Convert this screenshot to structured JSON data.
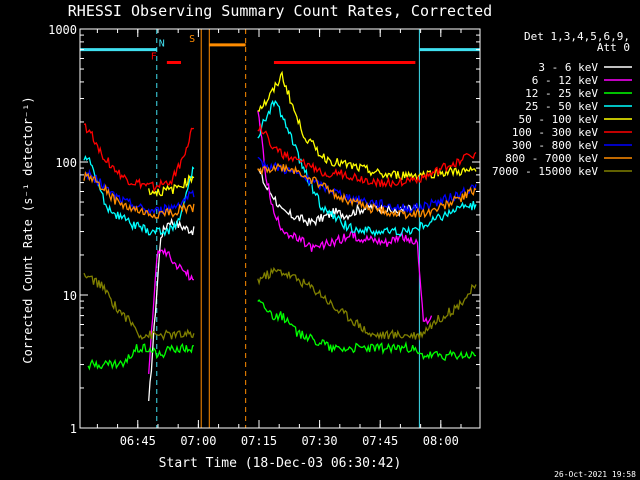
{
  "chart_data": {
    "type": "line",
    "title": "RHESSI Observing Summary Count Rates, Corrected",
    "xlabel": "Start Time (18-Dec-03 06:30:42)",
    "ylabel": "Corrected Count Rate (s⁻¹ detector⁻¹)",
    "yscale": "log",
    "ylim": [
      1,
      1000
    ],
    "xlim_min": [
      0,
      99
    ],
    "x_unit": "minutes after 06:30:42",
    "x_ticks": [
      {
        "t": 14.3,
        "label": "06:45"
      },
      {
        "t": 29.3,
        "label": "07:00"
      },
      {
        "t": 44.3,
        "label": "07:15"
      },
      {
        "t": 59.3,
        "label": "07:30"
      },
      {
        "t": 74.3,
        "label": "07:45"
      },
      {
        "t": 89.3,
        "label": "08:00"
      }
    ],
    "y_ticks": [
      {
        "v": 1,
        "label": "1"
      },
      {
        "v": 10,
        "label": "10"
      },
      {
        "v": 100,
        "label": "100"
      },
      {
        "v": 1000,
        "label": "1000"
      }
    ],
    "legend": {
      "header": [
        "Det 1,3,4,5,6,9,",
        "Att 0"
      ],
      "placement": "right"
    },
    "footer_date": "26-Oct-2021 19:58",
    "flags": [
      {
        "name": "night",
        "label": "N",
        "color": "#40e0f0",
        "segments": [
          [
            0,
            19
          ],
          [
            84,
            99
          ]
        ],
        "y": 700
      },
      {
        "name": "flare",
        "label": "F",
        "color": "#ff0000",
        "segments": [
          [
            21.5,
            25
          ],
          [
            48,
            83
          ]
        ],
        "y": 560
      },
      {
        "name": "saa",
        "label": "S",
        "color": "#ff8c00",
        "segments": [
          [
            32,
            41
          ]
        ],
        "y": 760
      }
    ],
    "vlines": [
      {
        "t": 19,
        "color": "#40e0f0",
        "style": "dashed"
      },
      {
        "t": 30,
        "color": "#ff8c00",
        "style": "solid"
      },
      {
        "t": 32,
        "color": "#ff8c00",
        "style": "solid"
      },
      {
        "t": 41,
        "color": "#ff8c00",
        "style": "dashed"
      },
      {
        "t": 84,
        "color": "#40e0f0",
        "style": "solid"
      },
      {
        "t": 99,
        "color": "#40e0f0",
        "style": "dashed"
      }
    ],
    "gaps": [
      [
        30,
        44
      ]
    ],
    "series": [
      {
        "name": "3 - 6 keV",
        "color": "#ffffff",
        "t": [
          17,
          20,
          22,
          24,
          26,
          28.5,
          44,
          46,
          48,
          50,
          52,
          54,
          57,
          60,
          63,
          66,
          69,
          72,
          75,
          78,
          81,
          83.5
        ],
        "v": [
          1.5,
          28,
          36,
          34,
          32,
          30,
          90,
          65,
          55,
          42,
          40,
          38,
          35,
          38,
          42,
          40,
          44,
          46,
          45,
          42,
          44,
          45
        ]
      },
      {
        "name": "6 - 12 keV",
        "color": "#ff00ff",
        "t": [
          17,
          19,
          21,
          23,
          25,
          27,
          28.5,
          44,
          46,
          48,
          50,
          52,
          55,
          58,
          61,
          64,
          67,
          70,
          73,
          76,
          79,
          83.5,
          85,
          87
        ],
        "v": [
          2.5,
          20,
          22,
          18,
          16,
          14,
          12,
          250,
          80,
          40,
          32,
          28,
          25,
          22,
          24,
          26,
          28,
          27,
          26,
          25,
          28,
          24,
          6,
          7
        ]
      },
      {
        "name": "12 - 25 keV",
        "color": "#00ff00",
        "t": [
          2,
          5,
          8,
          11,
          14,
          17,
          20,
          23,
          26,
          28.5,
          44,
          46,
          48,
          50,
          52,
          54,
          56,
          58,
          60,
          62,
          64,
          66,
          68,
          70,
          72,
          74,
          76,
          78,
          80,
          82,
          84,
          86,
          88,
          90,
          92,
          94,
          96,
          98
        ],
        "v": [
          3,
          3,
          3,
          3,
          4,
          4,
          3.5,
          4,
          4,
          4,
          9,
          8,
          7,
          7,
          6,
          5,
          5,
          4.5,
          4.5,
          4,
          4,
          4,
          4,
          4,
          4,
          4,
          4,
          4,
          4,
          4,
          3.5,
          3.5,
          3.5,
          3.5,
          3.5,
          3.5,
          3.5,
          3.5
        ]
      },
      {
        "name": "25 - 50 keV",
        "color": "#00ffff",
        "t": [
          1,
          3,
          5,
          7,
          9,
          11,
          13,
          15,
          17,
          19,
          21,
          23,
          25,
          27,
          28.5,
          44,
          46,
          48,
          50,
          52,
          54,
          56,
          58,
          60,
          63,
          66,
          69,
          72,
          75,
          78,
          81,
          84,
          87,
          90,
          93,
          96,
          98
        ],
        "v": [
          110,
          95,
          60,
          45,
          40,
          37,
          34,
          32,
          30,
          30,
          30,
          32,
          40,
          70,
          95,
          150,
          220,
          280,
          230,
          160,
          110,
          80,
          60,
          45,
          38,
          33,
          31,
          30,
          30,
          30,
          30,
          32,
          36,
          40,
          44,
          46,
          48
        ]
      },
      {
        "name": "50 - 100 keV",
        "color": "#ffff00",
        "t": [
          17,
          20,
          23,
          26,
          28.5,
          44,
          46,
          48,
          50,
          52,
          54,
          56,
          58,
          60,
          63,
          66,
          69,
          72,
          75,
          78,
          81,
          84,
          87,
          90,
          93,
          96,
          98
        ],
        "v": [
          60,
          60,
          62,
          70,
          80,
          250,
          280,
          350,
          450,
          300,
          200,
          150,
          130,
          110,
          100,
          95,
          90,
          85,
          80,
          80,
          80,
          80,
          82,
          84,
          85,
          85,
          85
        ]
      },
      {
        "name": "100 - 300 keV",
        "color": "#ff0000",
        "t": [
          1,
          3,
          5,
          7,
          9,
          11,
          13,
          15,
          17,
          19,
          21,
          23,
          25,
          27,
          28.5,
          44,
          46,
          48,
          50,
          52,
          54,
          56,
          58,
          60,
          63,
          66,
          69,
          72,
          75,
          78,
          81,
          84,
          87,
          90,
          93,
          96,
          98
        ],
        "v": [
          190,
          160,
          120,
          100,
          85,
          75,
          70,
          68,
          65,
          66,
          68,
          75,
          100,
          150,
          200,
          180,
          160,
          130,
          115,
          105,
          100,
          95,
          90,
          85,
          82,
          80,
          75,
          72,
          70,
          70,
          72,
          75,
          80,
          90,
          100,
          110,
          118
        ]
      },
      {
        "name": "300 - 800 keV",
        "color": "#0000ff",
        "t": [
          1,
          3,
          5,
          7,
          9,
          11,
          13,
          15,
          17,
          19,
          21,
          23,
          25,
          27,
          28.5,
          44,
          46,
          48,
          50,
          52,
          54,
          56,
          58,
          60,
          63,
          66,
          69,
          72,
          75,
          78,
          81,
          84,
          87,
          90,
          93,
          96,
          98
        ],
        "v": [
          80,
          78,
          70,
          60,
          55,
          50,
          48,
          45,
          43,
          43,
          44,
          46,
          50,
          55,
          60,
          100,
          95,
          92,
          90,
          85,
          80,
          75,
          70,
          65,
          60,
          55,
          52,
          50,
          48,
          46,
          45,
          46,
          48,
          52,
          56,
          60,
          68
        ]
      },
      {
        "name": "800 - 7000 keV",
        "color": "#ff8c00",
        "t": [
          1,
          3,
          5,
          7,
          9,
          11,
          13,
          15,
          17,
          19,
          21,
          23,
          25,
          27,
          28.5,
          44,
          46,
          48,
          50,
          52,
          54,
          56,
          58,
          60,
          63,
          66,
          69,
          72,
          75,
          78,
          81,
          84,
          87,
          90,
          93,
          96,
          98
        ],
        "v": [
          78,
          75,
          68,
          58,
          50,
          46,
          44,
          42,
          40,
          40,
          41,
          42,
          44,
          45,
          46,
          85,
          88,
          90,
          90,
          88,
          84,
          78,
          72,
          66,
          58,
          52,
          48,
          45,
          43,
          41,
          40,
          41,
          43,
          47,
          52,
          57,
          62
        ]
      },
      {
        "name": "7000 - 15000 keV",
        "color": "#808000",
        "t": [
          1,
          3,
          5,
          7,
          9,
          11,
          13,
          15,
          17,
          19,
          21,
          23,
          25,
          27,
          28.5,
          44,
          46,
          48,
          50,
          52,
          54,
          56,
          58,
          60,
          63,
          66,
          69,
          72,
          75,
          78,
          81,
          84,
          87,
          90,
          93,
          96,
          98
        ],
        "v": [
          14,
          13,
          12,
          10,
          8,
          7,
          6,
          5,
          5,
          5,
          5,
          5,
          5,
          5,
          5,
          13,
          14,
          15,
          15,
          14,
          13,
          12,
          11,
          10,
          8,
          7,
          6,
          5,
          5,
          5,
          5,
          5,
          6,
          7,
          8,
          10,
          12
        ]
      }
    ]
  }
}
